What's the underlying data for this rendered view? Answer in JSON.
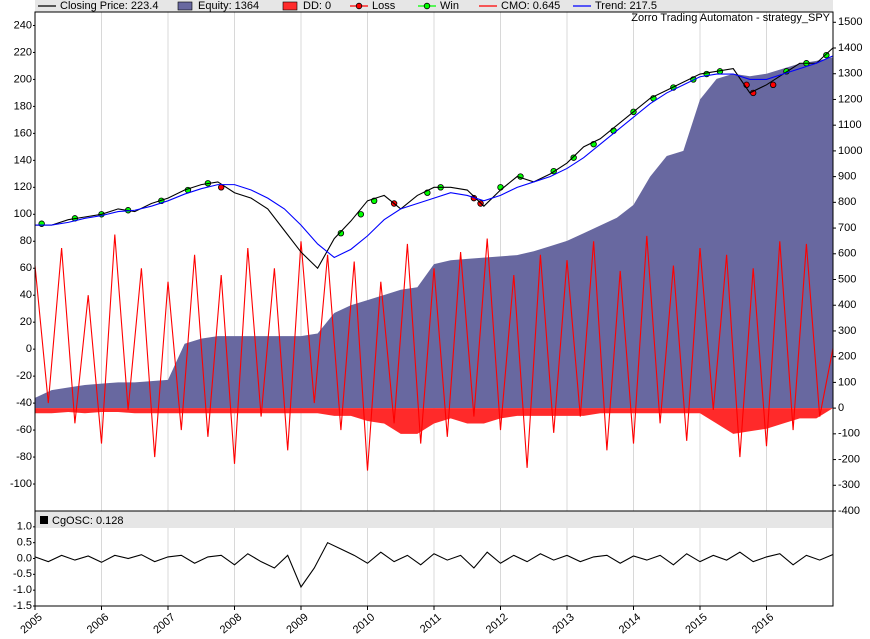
{
  "chart_data": [
    {
      "type": "line",
      "title": "Zorro Trading Automaton - strategy_SPY",
      "xlim": [
        2005,
        2017
      ],
      "ylim": [
        -120,
        250
      ],
      "yticks": [
        -100,
        -80,
        -60,
        -40,
        -20,
        0,
        20,
        40,
        60,
        80,
        100,
        120,
        140,
        160,
        180,
        200,
        220,
        240
      ],
      "y2lim": [
        -400,
        1540
      ],
      "y2ticks": [
        -400,
        -300,
        -200,
        -100,
        0,
        100,
        200,
        300,
        400,
        500,
        600,
        700,
        800,
        900,
        1000,
        1100,
        1200,
        1300,
        1400,
        1500
      ],
      "grid": true,
      "x": [
        2005,
        2005.25,
        2005.5,
        2005.75,
        2006,
        2006.25,
        2006.5,
        2006.75,
        2007,
        2007.25,
        2007.5,
        2007.75,
        2008,
        2008.25,
        2008.5,
        2008.75,
        2009,
        2009.25,
        2009.5,
        2009.75,
        2010,
        2010.25,
        2010.5,
        2010.75,
        2011,
        2011.25,
        2011.5,
        2011.75,
        2012,
        2012.25,
        2012.5,
        2012.75,
        2013,
        2013.25,
        2013.5,
        2013.75,
        2014,
        2014.25,
        2014.5,
        2014.75,
        2015,
        2015.25,
        2015.5,
        2015.75,
        2016,
        2016.25,
        2016.5,
        2016.75,
        2017
      ],
      "series": [
        {
          "name": "Equity: 1364",
          "mark": "area",
          "axis": "y2",
          "color": "#6868a0",
          "values": [
            40,
            70,
            80,
            90,
            95,
            100,
            100,
            105,
            110,
            250,
            270,
            280,
            280,
            280,
            280,
            280,
            280,
            290,
            370,
            400,
            420,
            440,
            460,
            470,
            560,
            575,
            580,
            585,
            590,
            595,
            610,
            630,
            650,
            680,
            710,
            740,
            790,
            900,
            980,
            1000,
            1200,
            1280,
            1300,
            1290,
            1300,
            1320,
            1340,
            1350,
            1364
          ]
        },
        {
          "name": "DD: 0",
          "mark": "area",
          "axis": "y2",
          "color": "#ff2a2a",
          "values": [
            -20,
            -20,
            -15,
            -20,
            -15,
            -15,
            -20,
            -20,
            -20,
            -20,
            -20,
            -20,
            -20,
            -20,
            -20,
            -20,
            -20,
            -20,
            -30,
            -30,
            -50,
            -60,
            -100,
            -100,
            -60,
            -40,
            -60,
            -60,
            -40,
            -30,
            -30,
            -30,
            -30,
            -30,
            -20,
            -20,
            -20,
            -20,
            -20,
            -20,
            -20,
            -60,
            -100,
            -90,
            -80,
            -60,
            -40,
            -40,
            0
          ]
        },
        {
          "name": "Loss",
          "mark": "markers",
          "color": "#ff0000",
          "x": [
            2007.8,
            2010.4,
            2011.6,
            2011.7,
            2015.7,
            2015.8,
            2016.1
          ],
          "values": [
            120,
            108,
            112,
            108,
            196,
            190,
            196
          ]
        },
        {
          "name": "Win",
          "mark": "markers",
          "color": "#00ff00",
          "x": [
            2005.1,
            2005.6,
            2006.0,
            2006.4,
            2006.9,
            2007.3,
            2007.6,
            2009.6,
            2009.9,
            2010.1,
            2010.9,
            2011.1,
            2012.0,
            2012.3,
            2012.8,
            2013.1,
            2013.4,
            2013.7,
            2014.0,
            2014.3,
            2014.6,
            2014.9,
            2015.1,
            2015.3,
            2016.3,
            2016.6,
            2016.9
          ],
          "values": [
            93,
            97,
            100,
            103,
            110,
            118,
            123,
            86,
            100,
            110,
            116,
            120,
            120,
            128,
            132,
            142,
            152,
            162,
            176,
            186,
            194,
            200,
            204,
            206,
            206,
            212,
            218
          ]
        },
        {
          "name": "CMO: 0.645",
          "mark": "line",
          "color": "#ff0000",
          "x": [
            2005,
            2005.2,
            2005.4,
            2005.6,
            2005.8,
            2006,
            2006.2,
            2006.4,
            2006.6,
            2006.8,
            2007,
            2007.2,
            2007.4,
            2007.6,
            2007.8,
            2008,
            2008.2,
            2008.4,
            2008.6,
            2008.8,
            2009,
            2009.2,
            2009.4,
            2009.6,
            2009.8,
            2010,
            2010.2,
            2010.4,
            2010.6,
            2010.8,
            2011,
            2011.2,
            2011.4,
            2011.6,
            2011.8,
            2012,
            2012.2,
            2012.4,
            2012.6,
            2012.8,
            2013,
            2013.2,
            2013.4,
            2013.6,
            2013.8,
            2014,
            2014.2,
            2014.4,
            2014.6,
            2014.8,
            2015,
            2015.2,
            2015.4,
            2015.6,
            2015.8,
            2016,
            2016.2,
            2016.4,
            2016.6,
            2016.8,
            2017
          ],
          "values": [
            62,
            -40,
            75,
            -55,
            40,
            -70,
            85,
            -45,
            60,
            -80,
            50,
            -60,
            70,
            -65,
            55,
            -85,
            75,
            -50,
            60,
            -75,
            80,
            -40,
            70,
            -60,
            65,
            -90,
            50,
            -55,
            78,
            -70,
            60,
            -65,
            72,
            -50,
            82,
            -60,
            55,
            -88,
            70,
            -62,
            66,
            -50,
            80,
            -75,
            58,
            -70,
            84,
            -55,
            62,
            -68,
            75,
            -45,
            70,
            -80,
            60,
            -72,
            80,
            -60,
            78,
            -50,
            0.645
          ]
        },
        {
          "name": "Closing Price: 223.4",
          "mark": "line",
          "color": "#000000",
          "values": [
            92,
            92,
            96,
            98,
            100,
            104,
            102,
            108,
            112,
            118,
            122,
            124,
            116,
            112,
            104,
            88,
            72,
            60,
            82,
            95,
            110,
            114,
            104,
            114,
            120,
            120,
            118,
            106,
            118,
            128,
            124,
            130,
            138,
            150,
            156,
            166,
            176,
            186,
            192,
            198,
            204,
            206,
            208,
            190,
            196,
            204,
            212,
            212,
            223.4
          ]
        },
        {
          "name": "Trend: 217.5",
          "mark": "line",
          "color": "#0000ff",
          "values": [
            92,
            92,
            94,
            97,
            99,
            102,
            103,
            106,
            110,
            115,
            119,
            122,
            122,
            118,
            112,
            104,
            92,
            78,
            68,
            74,
            84,
            96,
            104,
            108,
            112,
            116,
            114,
            110,
            114,
            120,
            124,
            128,
            134,
            142,
            152,
            162,
            172,
            182,
            190,
            196,
            202,
            204,
            204,
            200,
            200,
            204,
            208,
            212,
            217.5
          ]
        }
      ]
    },
    {
      "type": "line",
      "xlim": [
        2005,
        2017
      ],
      "xticks": [
        2005,
        2006,
        2007,
        2008,
        2009,
        2010,
        2011,
        2012,
        2013,
        2014,
        2015,
        2016
      ],
      "ylim": [
        -1.5,
        1.5
      ],
      "yticks": [
        -1.5,
        {
          "value": -1,
          "label": "-1.0"
        },
        -0.5,
        {
          "value": 0,
          "label": "0.0"
        },
        0.5,
        {
          "value": 1,
          "label": "1.0"
        }
      ],
      "series": [
        {
          "name": "CgOSC: 0.128",
          "mark": "line",
          "color": "#000000",
          "x": [
            2005,
            2005.2,
            2005.4,
            2005.6,
            2005.8,
            2006,
            2006.2,
            2006.4,
            2006.6,
            2006.8,
            2007,
            2007.2,
            2007.4,
            2007.6,
            2007.8,
            2008,
            2008.2,
            2008.4,
            2008.6,
            2008.8,
            2009,
            2009.2,
            2009.4,
            2009.6,
            2009.8,
            2010,
            2010.2,
            2010.4,
            2010.6,
            2010.8,
            2011,
            2011.2,
            2011.4,
            2011.6,
            2011.8,
            2012,
            2012.2,
            2012.4,
            2012.6,
            2012.8,
            2013,
            2013.2,
            2013.4,
            2013.6,
            2013.8,
            2014,
            2014.2,
            2014.4,
            2014.6,
            2014.8,
            2015,
            2015.2,
            2015.4,
            2015.6,
            2015.8,
            2016,
            2016.2,
            2016.4,
            2016.6,
            2016.8,
            2017
          ],
          "values": [
            0.05,
            -0.1,
            0.1,
            -0.05,
            0.08,
            -0.12,
            0.1,
            0,
            0.12,
            -0.1,
            0.05,
            0.1,
            -0.15,
            0.05,
            0.1,
            -0.2,
            0.15,
            -0.1,
            -0.3,
            0.1,
            -0.9,
            -0.3,
            0.5,
            0.3,
            0.1,
            -0.15,
            0.2,
            -0.1,
            0.1,
            -0.2,
            0.15,
            -0.05,
            0.1,
            -0.3,
            0.2,
            -0.15,
            0.1,
            -0.1,
            0.15,
            -0.05,
            0.1,
            -0.1,
            0.05,
            0.1,
            -0.15,
            0.08,
            -0.05,
            0.1,
            -0.2,
            0.15,
            -0.1,
            0.1,
            -0.05,
            0.2,
            -0.1,
            0.05,
            0.15,
            -0.2,
            0.1,
            -0.05,
            0.128
          ]
        }
      ]
    }
  ]
}
